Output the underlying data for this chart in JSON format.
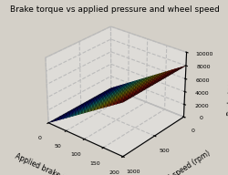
{
  "title": "Brake torque vs applied pressure and wheel speed",
  "xlabel": "Applied brake pressure (bar)",
  "ylabel": "Wheel speed (rpm)",
  "zlabel": "Brake torque (Nm)",
  "pressure_min": 0,
  "pressure_max": 200,
  "speed_min": 0,
  "speed_max": 1000,
  "torque_min": 0,
  "torque_max": 10000,
  "pressure_ticks": [
    0,
    50,
    100,
    150,
    200
  ],
  "speed_ticks": [
    0,
    500,
    1000
  ],
  "torque_ticks": [
    0,
    2000,
    4000,
    6000,
    8000,
    10000
  ],
  "colormap": "jet",
  "background_color": "#d4d0c8",
  "title_fontsize": 6.5,
  "axis_label_fontsize": 5.5,
  "tick_fontsize": 4.5,
  "elev": 28,
  "azim": -50,
  "torque_scale": 40
}
